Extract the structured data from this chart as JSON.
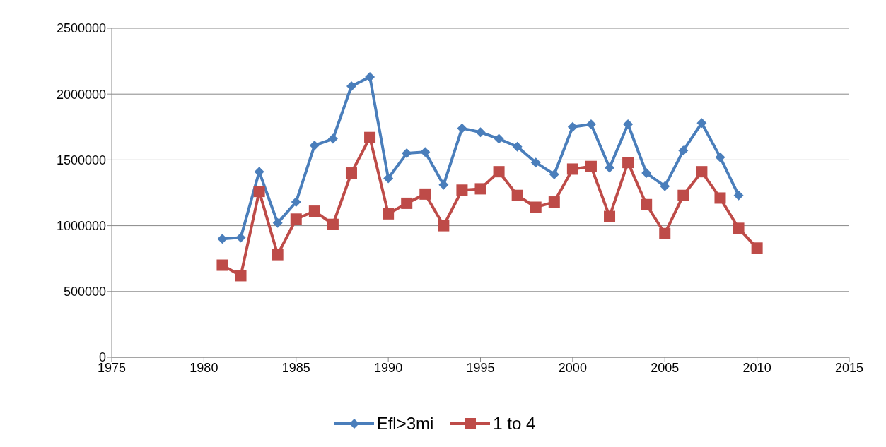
{
  "chart_data": {
    "type": "line",
    "x": [
      1981,
      1982,
      1983,
      1984,
      1985,
      1986,
      1987,
      1988,
      1989,
      1990,
      1991,
      1992,
      1993,
      1994,
      1995,
      1996,
      1997,
      1998,
      1999,
      2000,
      2001,
      2002,
      2003,
      2004,
      2005,
      2006,
      2007,
      2008,
      2009,
      2010
    ],
    "series": [
      {
        "name": "Efl>3mi",
        "color": "#4a7ebb",
        "marker": "diamond",
        "values": [
          900000,
          910000,
          1410000,
          1020000,
          1180000,
          1610000,
          1660000,
          2060000,
          2130000,
          1360000,
          1550000,
          1560000,
          1310000,
          1740000,
          1710000,
          1660000,
          1600000,
          1480000,
          1390000,
          1750000,
          1770000,
          1440000,
          1770000,
          1400000,
          1300000,
          1570000,
          1780000,
          1520000,
          1230000,
          null
        ]
      },
      {
        "name": "1 to 4",
        "color": "#be4b48",
        "marker": "square",
        "values": [
          700000,
          620000,
          1260000,
          780000,
          1050000,
          1110000,
          1010000,
          1400000,
          1670000,
          1090000,
          1170000,
          1240000,
          1000000,
          1270000,
          1280000,
          1410000,
          1230000,
          1140000,
          1180000,
          1430000,
          1450000,
          1070000,
          1480000,
          1160000,
          940000,
          1230000,
          1410000,
          1210000,
          980000,
          830000
        ]
      }
    ],
    "xlim": [
      1975,
      2015
    ],
    "xticks": [
      1975,
      1980,
      1985,
      1990,
      1995,
      2000,
      2005,
      2010,
      2015
    ],
    "ylim": [
      0,
      2500000
    ],
    "yticks": [
      0,
      500000,
      1000000,
      1500000,
      2000000,
      2500000
    ],
    "grid": "y",
    "legend": "bottom",
    "line_style": "solid"
  }
}
